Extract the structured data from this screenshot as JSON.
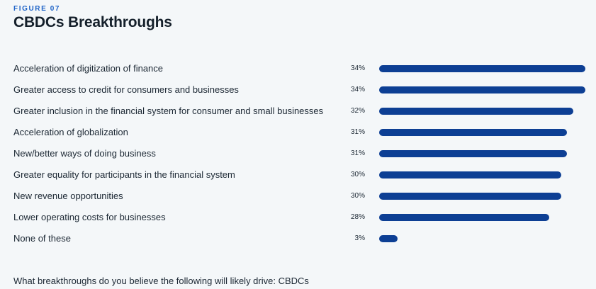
{
  "figure_label": "FIGURE 07",
  "title": "CBDCs Breakthroughs",
  "question": "What breakthroughs do you believe the following will likely drive: CBDCs",
  "colors": {
    "bar": "#0d3f94",
    "eyebrow": "#1f64c8",
    "background": "#f4f7f9"
  },
  "chart_data": {
    "type": "bar",
    "orientation": "horizontal",
    "title": "CBDCs Breakthroughs",
    "xlim": [
      0,
      34
    ],
    "grid": false,
    "categories": [
      "Acceleration of digitization of finance",
      "Greater access to credit for consumers and businesses",
      "Greater inclusion in the financial system for consumer and small businesses",
      "Acceleration of globalization",
      "New/better ways of doing business",
      "Greater equality for participants in the financial system",
      "New revenue opportunities",
      "Lower operating costs for businesses",
      "None of these"
    ],
    "values": [
      34,
      34,
      32,
      31,
      31,
      30,
      30,
      28,
      3
    ],
    "value_labels": [
      "34%",
      "34%",
      "32%",
      "31%",
      "31%",
      "30%",
      "30%",
      "28%",
      "3%"
    ]
  }
}
